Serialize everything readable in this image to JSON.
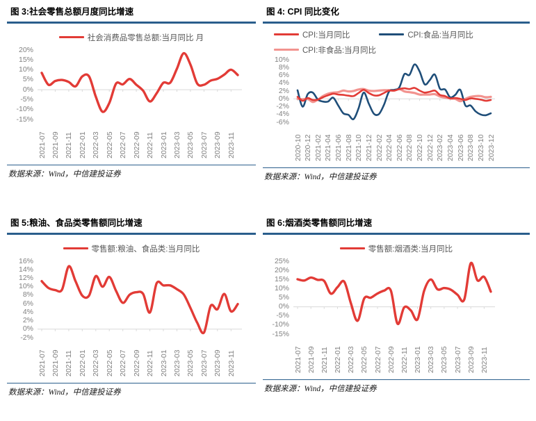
{
  "source_note": "数据来源：Wind，中信建投证券",
  "colors": {
    "red": "#E23B36",
    "dark_blue": "#1F4E79",
    "pink": "#F2938F",
    "title_rule": "#2A5E8C",
    "axis_text": "#808080",
    "legend_text": "#595959",
    "gridline": "#D9D9D9"
  },
  "chart_data": [
    {
      "type": "line",
      "title": "图 3:社会零售总额月度同比增速",
      "legend_position": "top-center",
      "grid": "zero-baseline-only",
      "ylim": [
        -15,
        20
      ],
      "y_tick_step": 5,
      "y_tick_format": "percent",
      "x": [
        "2021-07",
        "2021-08",
        "2021-09",
        "2021-10",
        "2021-11",
        "2021-12",
        "2022-01",
        "2022-02",
        "2022-03",
        "2022-04",
        "2022-05",
        "2022-06",
        "2022-07",
        "2022-08",
        "2022-09",
        "2022-10",
        "2022-11",
        "2022-12",
        "2023-01",
        "2023-02",
        "2023-03",
        "2023-04",
        "2023-05",
        "2023-06",
        "2023-07",
        "2023-08",
        "2023-09",
        "2023-10",
        "2023-11",
        "2023-12"
      ],
      "x_tick_every": 2,
      "series": [
        {
          "name": "社会消费品零售总额:当月同比 月",
          "color": "#E23B36",
          "values": [
            8.5,
            2.5,
            4.4,
            4.9,
            3.9,
            1.7,
            6.7,
            6.7,
            -3.5,
            -11.1,
            -6.7,
            3.1,
            2.7,
            5.4,
            2.5,
            -0.5,
            -5.9,
            -1.8,
            3.5,
            3.5,
            10.6,
            18.4,
            12.7,
            3.1,
            2.5,
            4.6,
            5.5,
            7.6,
            10.1,
            7.4
          ]
        }
      ]
    },
    {
      "type": "line",
      "title": "图 4: CPI 同比变化",
      "legend_position": "top-center",
      "grid": "zero-baseline-only",
      "ylim": [
        -6,
        10
      ],
      "y_tick_step": 2,
      "y_tick_format": "percent",
      "x": [
        "2020-10",
        "2020-11",
        "2020-12",
        "2021-01",
        "2021-02",
        "2021-03",
        "2021-04",
        "2021-05",
        "2021-06",
        "2021-07",
        "2021-08",
        "2021-09",
        "2021-10",
        "2021-11",
        "2021-12",
        "2022-01",
        "2022-02",
        "2022-03",
        "2022-04",
        "2022-05",
        "2022-06",
        "2022-07",
        "2022-08",
        "2022-09",
        "2022-10",
        "2022-11",
        "2022-12",
        "2023-01",
        "2023-02",
        "2023-03",
        "2023-04",
        "2023-05",
        "2023-06",
        "2023-07",
        "2023-08",
        "2023-09",
        "2023-10",
        "2023-11",
        "2023-12"
      ],
      "x_tick_every": 2,
      "series": [
        {
          "name": "CPI:当月同比",
          "color": "#E23B36",
          "values": [
            0.5,
            -0.5,
            0.2,
            -0.3,
            -0.2,
            0.4,
            0.9,
            1.3,
            1.1,
            1.0,
            0.8,
            0.7,
            1.5,
            2.3,
            1.5,
            0.9,
            0.9,
            1.5,
            2.1,
            2.1,
            2.5,
            2.7,
            2.5,
            2.8,
            2.1,
            1.6,
            1.8,
            2.1,
            1.0,
            0.7,
            0.1,
            0.2,
            0.0,
            -0.3,
            0.1,
            0.0,
            -0.2,
            -0.5,
            -0.3
          ]
        },
        {
          "name": "CPI:食品:当月同比",
          "color": "#1F4E79",
          "values": [
            2.2,
            -2.0,
            1.2,
            1.6,
            -0.2,
            -0.7,
            -0.7,
            0.3,
            -1.7,
            -3.7,
            -4.1,
            -5.2,
            -2.4,
            1.6,
            -1.2,
            -3.8,
            -3.9,
            -1.5,
            1.9,
            2.3,
            2.9,
            6.3,
            6.1,
            8.8,
            7.0,
            3.7,
            4.8,
            6.2,
            2.6,
            2.4,
            0.4,
            1.0,
            2.3,
            -1.7,
            -1.7,
            -3.2,
            -4.0,
            -4.2,
            -3.7
          ]
        },
        {
          "name": "CPI:非食品:当月同比",
          "color": "#F2938F",
          "values": [
            0.0,
            -0.1,
            0.0,
            -0.8,
            -0.2,
            0.7,
            1.3,
            1.6,
            1.7,
            2.1,
            1.9,
            2.0,
            2.4,
            2.5,
            2.1,
            2.0,
            2.1,
            2.2,
            2.2,
            2.1,
            2.5,
            1.9,
            1.7,
            1.5,
            1.1,
            1.1,
            1.1,
            1.2,
            0.6,
            0.3,
            0.1,
            0.0,
            -0.6,
            0.0,
            0.5,
            0.7,
            0.7,
            0.4,
            0.5
          ]
        }
      ]
    },
    {
      "type": "line",
      "title": "图 5:粮油、食品类零售额同比增速",
      "legend_position": "top-center",
      "grid": "zero-baseline-only",
      "ylim": [
        -2,
        16
      ],
      "y_tick_step": 2,
      "y_tick_format": "percent",
      "x": [
        "2021-07",
        "2021-08",
        "2021-09",
        "2021-10",
        "2021-11",
        "2021-12",
        "2022-01",
        "2022-02",
        "2022-03",
        "2022-04",
        "2022-05",
        "2022-06",
        "2022-07",
        "2022-08",
        "2022-09",
        "2022-10",
        "2022-11",
        "2022-12",
        "2023-01",
        "2023-02",
        "2023-03",
        "2023-04",
        "2023-05",
        "2023-06",
        "2023-07",
        "2023-08",
        "2023-09",
        "2023-10",
        "2023-11",
        "2023-12"
      ],
      "x_tick_every": 2,
      "series": [
        {
          "name": "零售额:粮油、食品类:当月同比",
          "color": "#E23B36",
          "values": [
            11.3,
            9.7,
            9.2,
            9.3,
            14.8,
            11.3,
            7.9,
            7.9,
            12.5,
            10.0,
            12.3,
            9.0,
            6.2,
            8.1,
            8.7,
            8.3,
            3.9,
            10.8,
            10.3,
            10.3,
            9.4,
            8.2,
            5.0,
            1.5,
            -0.8,
            5.5,
            4.7,
            8.3,
            4.2,
            5.9
          ]
        }
      ]
    },
    {
      "type": "line",
      "title": "图 6:烟酒类零售额同比增速",
      "legend_position": "top-center",
      "grid": "zero-baseline-only",
      "ylim": [
        -15,
        25
      ],
      "y_tick_step": 5,
      "y_tick_format": "percent",
      "x": [
        "2021-07",
        "2021-08",
        "2021-09",
        "2021-10",
        "2021-11",
        "2021-12",
        "2022-01",
        "2022-02",
        "2022-03",
        "2022-04",
        "2022-05",
        "2022-06",
        "2022-07",
        "2022-08",
        "2022-09",
        "2022-10",
        "2022-11",
        "2022-12",
        "2023-01",
        "2023-02",
        "2023-03",
        "2023-04",
        "2023-05",
        "2023-06",
        "2023-07",
        "2023-08",
        "2023-09",
        "2023-10",
        "2023-11",
        "2023-12"
      ],
      "x_tick_every": 2,
      "series": [
        {
          "name": "零售额:烟酒类:当月同比",
          "color": "#E23B36",
          "values": [
            15.1,
            14.4,
            16.0,
            14.8,
            14.2,
            7.2,
            10.8,
            13.8,
            2.0,
            -7.7,
            4.6,
            5.0,
            7.3,
            8.9,
            8.9,
            -9.3,
            -0.3,
            -2.0,
            -6.9,
            8.8,
            15.0,
            9.6,
            10.3,
            9.4,
            6.6,
            3.9,
            23.9,
            14.5,
            16.4,
            8.3
          ]
        }
      ]
    }
  ]
}
